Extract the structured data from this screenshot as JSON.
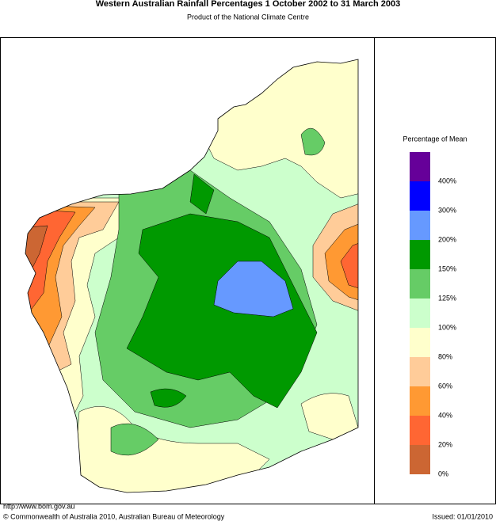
{
  "header": {
    "title": "Western Australian Rainfall Percentages 1 October 2002 to 31 March 2003",
    "subtitle": "Product of the National Climate Centre"
  },
  "legend": {
    "title": "Percentage of Mean",
    "colors": [
      "#660099",
      "#0000ff",
      "#6699ff",
      "#009900",
      "#66cc66",
      "#ccffcc",
      "#ffffcc",
      "#ffcc99",
      "#ff9933",
      "#ff6633",
      "#cc6633"
    ],
    "labels": [
      "400%",
      "300%",
      "200%",
      "150%",
      "125%",
      "100%",
      "80%",
      "60%",
      "40%",
      "20%",
      "0%"
    ]
  },
  "footer": {
    "url": "http://www.bom.gov.au",
    "copyright": "© Commonwealth of Australia 2010, Australian Bureau of Meteorology",
    "issued": "Issued: 01/01/2010"
  }
}
